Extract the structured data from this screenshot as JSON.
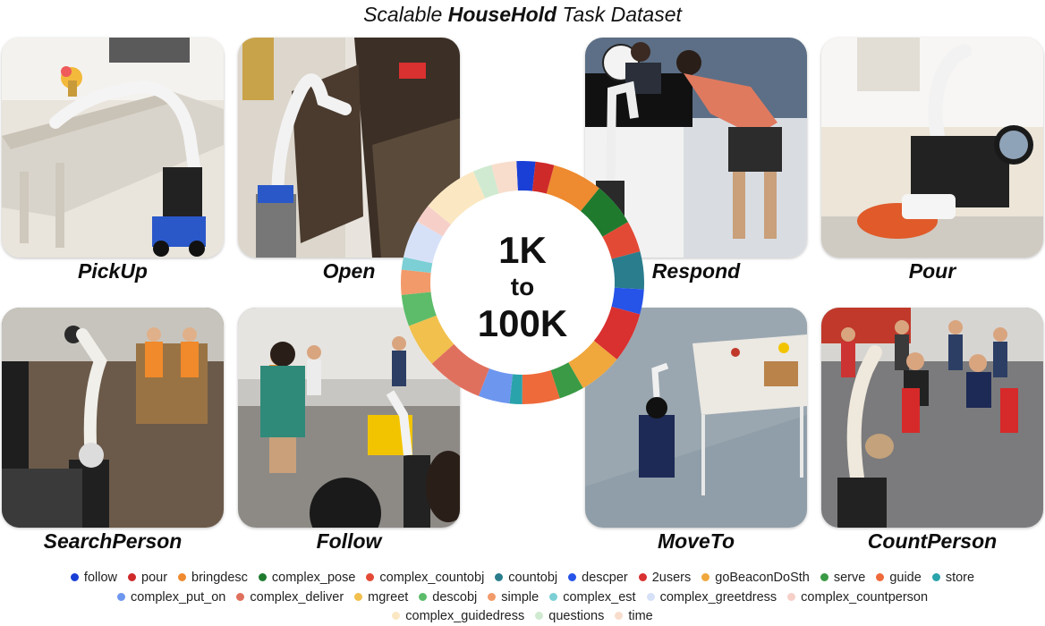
{
  "title": {
    "plain": "Scalable ",
    "bold": "HouseHold",
    "rest": " Task Dataset"
  },
  "center": {
    "line1": "1K",
    "line2": "to",
    "line3": "100K"
  },
  "captions": {
    "pickup": "PickUp",
    "open": "Open",
    "respond": "Respond",
    "pour": "Pour",
    "searchperson": "SearchPerson",
    "follow": "Follow",
    "moveto": "MoveTo",
    "countperson": "CountPerson"
  },
  "legend": [
    {
      "label": "follow",
      "color": "#1a3fd6"
    },
    {
      "label": "pour",
      "color": "#cf2a2a"
    },
    {
      "label": "bringdesc",
      "color": "#ee8a2f"
    },
    {
      "label": "complex_pose",
      "color": "#1f7a2e"
    },
    {
      "label": "complex_countobj",
      "color": "#e34a35"
    },
    {
      "label": "countobj",
      "color": "#2a7d8c"
    },
    {
      "label": "descper",
      "color": "#2653e8"
    },
    {
      "label": "2users",
      "color": "#d93030"
    },
    {
      "label": "goBeaconDoSth",
      "color": "#f0a73c"
    },
    {
      "label": "serve",
      "color": "#3a9a45"
    },
    {
      "label": "guide",
      "color": "#ee6a3a"
    },
    {
      "label": "store",
      "color": "#2aa3ab"
    },
    {
      "label": "complex_put_on",
      "color": "#6d96ef"
    },
    {
      "label": "complex_deliver",
      "color": "#e0705e"
    },
    {
      "label": "mgreet",
      "color": "#f1c04d"
    },
    {
      "label": "descobj",
      "color": "#5cbc6a"
    },
    {
      "label": "simple",
      "color": "#f29a6a"
    },
    {
      "label": "complex_est",
      "color": "#7ccfd4"
    },
    {
      "label": "complex_greetdress",
      "color": "#d6e1f8"
    },
    {
      "label": "complex_countperson",
      "color": "#f6d0c8"
    },
    {
      "label": "complex_guidedress",
      "color": "#fbe8c3"
    },
    {
      "label": "questions",
      "color": "#cfead0"
    },
    {
      "label": "time",
      "color": "#f8ddcc"
    }
  ],
  "chart_data": {
    "type": "pie",
    "style": "donut",
    "categories": [
      "follow",
      "pour",
      "bringdesc",
      "complex_pose",
      "complex_countobj",
      "countobj",
      "descper",
      "2users",
      "goBeaconDoSth",
      "serve",
      "guide",
      "store",
      "complex_put_on",
      "complex_deliver",
      "mgreet",
      "descobj",
      "simple",
      "complex_est",
      "complex_greetdress",
      "complex_countperson",
      "complex_guidedress",
      "questions",
      "time"
    ],
    "values": [
      3,
      3,
      8,
      7,
      5,
      6,
      4,
      8,
      7,
      4,
      6,
      2,
      5,
      9,
      7,
      5,
      4,
      2,
      6,
      3,
      9,
      3,
      4
    ]
  }
}
